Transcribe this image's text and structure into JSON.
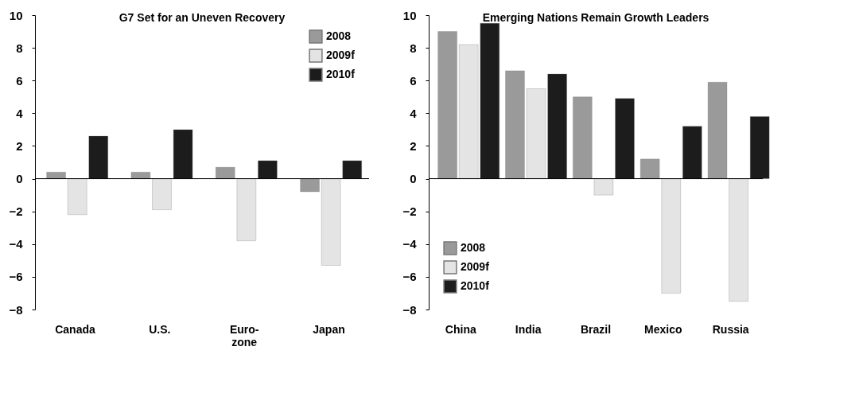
{
  "chart_data": [
    {
      "type": "bar",
      "title": "G7 Set for an Uneven Recovery",
      "categories": [
        "Canada",
        "U.S.",
        "Euro-\nzone",
        "Japan"
      ],
      "series": [
        {
          "name": "2008",
          "color": "#9a9a9a",
          "values": [
            0.4,
            0.4,
            0.7,
            -0.8
          ]
        },
        {
          "name": "2009f",
          "color": "#e4e4e4",
          "values": [
            -2.2,
            -1.9,
            -3.8,
            -5.3
          ]
        },
        {
          "name": "2010f",
          "color": "#1c1c1c",
          "values": [
            2.6,
            3.0,
            1.1,
            1.1
          ]
        }
      ],
      "ylim": [
        -8,
        10
      ],
      "yticks": [
        -8,
        -6,
        -4,
        -2,
        0,
        2,
        4,
        6,
        8,
        10
      ],
      "grid": false,
      "legend": "top right",
      "ref_lines": [
        {
          "axis": "y",
          "value": 0,
          "color": "#000000"
        }
      ]
    },
    {
      "type": "bar",
      "title": "Emerging Nations Remain Growth Leaders",
      "categories": [
        "China",
        "India",
        "Brazil",
        "Mexico",
        "Russia"
      ],
      "series": [
        {
          "name": "2008",
          "color": "#9a9a9a",
          "values": [
            9.0,
            6.6,
            5.0,
            1.2,
            5.9
          ]
        },
        {
          "name": "2009f",
          "color": "#e4e4e4",
          "values": [
            8.2,
            5.5,
            -1.0,
            -7.0,
            -7.5
          ]
        },
        {
          "name": "2010f",
          "color": "#1c1c1c",
          "values": [
            9.5,
            6.4,
            4.9,
            3.2,
            3.8
          ]
        }
      ],
      "ylim": [
        -8,
        10
      ],
      "yticks": [
        -8,
        -6,
        -4,
        -2,
        0,
        2,
        4,
        6,
        8,
        10
      ],
      "grid": false,
      "legend": "bottom left",
      "ref_lines": [
        {
          "axis": "y",
          "value": 0,
          "color": "#000000"
        }
      ]
    }
  ]
}
